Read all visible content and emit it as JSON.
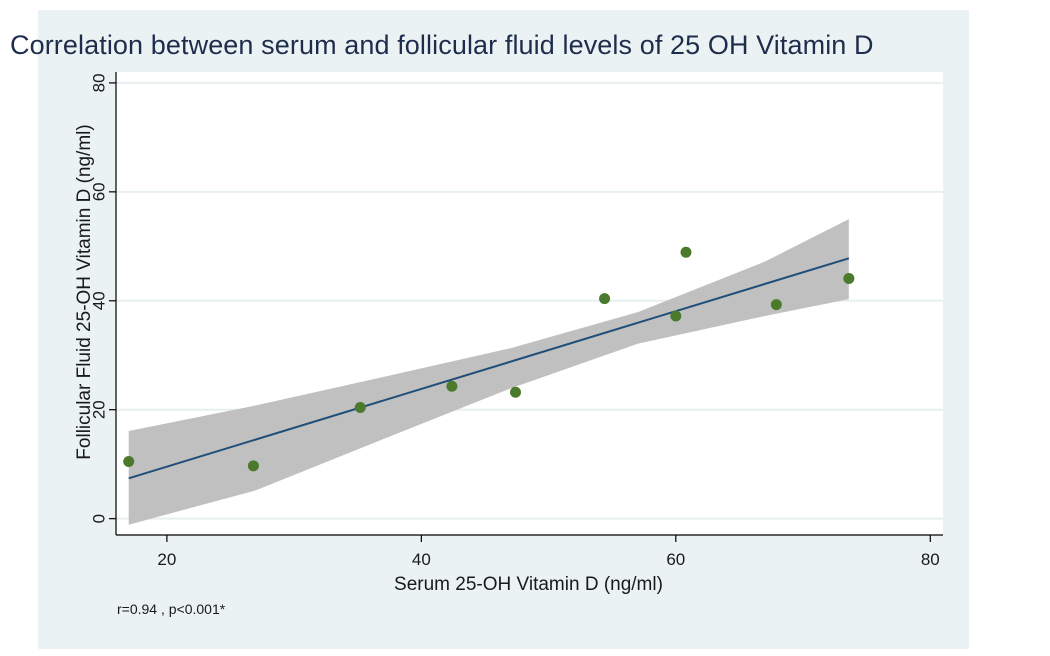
{
  "chart_data": {
    "type": "scatter",
    "title": "Correlation between serum and follicular fluid levels of 25 OH Vitamin D",
    "xlabel": "Serum 25-OH Vitamin D (ng/ml)",
    "ylabel": "Follicular Fluid 25-OH Vitamin D (ng/ml)",
    "xlim": [
      16,
      81
    ],
    "ylim": [
      -3,
      82
    ],
    "xticks": [
      20,
      40,
      60,
      80
    ],
    "yticks": [
      0,
      20,
      40,
      60,
      80
    ],
    "grid": true,
    "note": "r=0.94 , p<0.001*",
    "points": [
      {
        "x": 17,
        "y": 10.5
      },
      {
        "x": 26.8,
        "y": 9.7
      },
      {
        "x": 35.2,
        "y": 20.4
      },
      {
        "x": 42.4,
        "y": 24.3
      },
      {
        "x": 47.4,
        "y": 23.2
      },
      {
        "x": 54.4,
        "y": 40.4
      },
      {
        "x": 60,
        "y": 37.2
      },
      {
        "x": 60.8,
        "y": 48.9
      },
      {
        "x": 67.9,
        "y": 39.3
      },
      {
        "x": 73.6,
        "y": 44.1
      }
    ],
    "fit_line": {
      "x": [
        17,
        73.6
      ],
      "y": [
        7.4,
        47.8
      ]
    },
    "confidence_band": {
      "x": [
        17,
        27,
        37,
        47,
        57,
        67,
        73.6
      ],
      "lower": [
        -1.1,
        5.2,
        14.6,
        23.9,
        32.1,
        37.2,
        40.3
      ],
      "upper": [
        16.1,
        20.8,
        26.0,
        31.3,
        37.9,
        47.2,
        55.0
      ]
    },
    "colors": {
      "panel": "#eaf2f3",
      "plot": "#ffffff",
      "band": "#c0c0c0",
      "fit": "#1f4e79",
      "marker": "#4b7a2c",
      "grid": "#e8eff0"
    }
  }
}
